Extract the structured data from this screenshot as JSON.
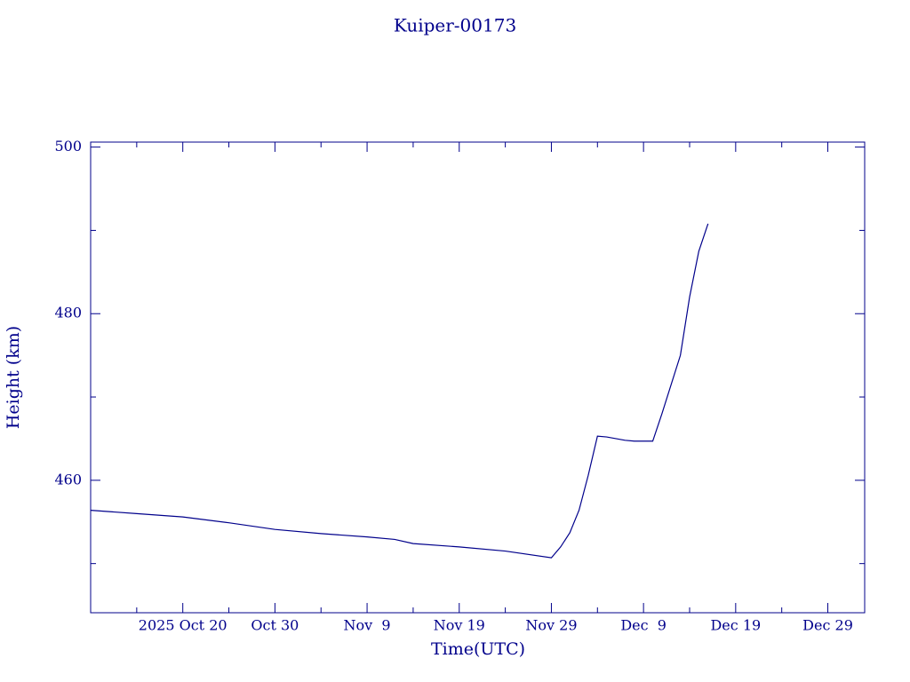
{
  "chart_data": {
    "type": "line",
    "title": "Kuiper-00173",
    "xlabel": "Time(UTC)",
    "ylabel": "Height (km)",
    "color": "#00008b",
    "x": [
      "2025-10-10",
      "2025-10-15",
      "2025-10-20",
      "2025-10-25",
      "2025-10-30",
      "2025-11-04",
      "2025-11-09",
      "2025-11-12",
      "2025-11-14",
      "2025-11-19",
      "2025-11-24",
      "2025-11-29",
      "2025-11-30",
      "2025-12-01",
      "2025-12-02",
      "2025-12-03",
      "2025-12-04",
      "2025-12-05",
      "2025-12-06",
      "2025-12-07",
      "2025-12-08",
      "2025-12-09",
      "2025-12-10",
      "2025-12-11",
      "2025-12-12",
      "2025-12-13",
      "2025-12-14",
      "2025-12-15",
      "2025-12-16"
    ],
    "values": [
      456.4,
      456.0,
      455.6,
      454.9,
      454.1,
      453.6,
      453.2,
      452.9,
      452.4,
      452.0,
      451.5,
      450.7,
      452.0,
      453.7,
      456.4,
      460.6,
      465.3,
      465.2,
      465.0,
      464.8,
      464.7,
      464.7,
      464.7,
      468.0,
      471.5,
      475.0,
      482.0,
      487.5,
      490.8
    ],
    "xlim": [
      "2025-10-10",
      "2026-01-02"
    ],
    "xticks": [
      {
        "value": "2025-10-20",
        "label": "2025 Oct 20"
      },
      {
        "value": "2025-10-30",
        "label": "Oct 30"
      },
      {
        "value": "2025-11-09",
        "label": "Nov  9"
      },
      {
        "value": "2025-11-19",
        "label": "Nov 19"
      },
      {
        "value": "2025-11-29",
        "label": "Nov 29"
      },
      {
        "value": "2025-12-09",
        "label": "Dec  9"
      },
      {
        "value": "2025-12-19",
        "label": "Dec 19"
      },
      {
        "value": "2025-12-29",
        "label": "Dec 29"
      }
    ],
    "xminorticks": [
      "2025-10-15",
      "2025-10-25",
      "2025-11-04",
      "2025-11-14",
      "2025-11-24",
      "2025-12-04",
      "2025-12-14",
      "2025-12-24"
    ],
    "ylim": [
      444.1,
      500.6
    ],
    "yticks": [
      460,
      480,
      500
    ],
    "yminorticks": [
      450,
      470,
      490
    ]
  }
}
